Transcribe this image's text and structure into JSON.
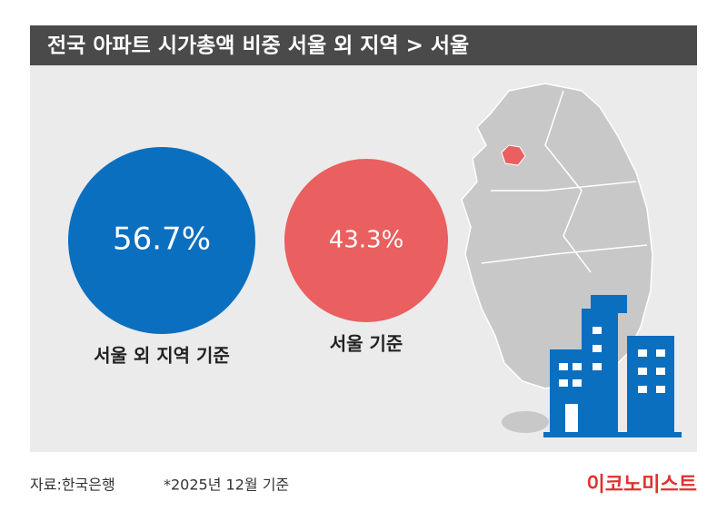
{
  "chart_data": {
    "type": "bubble",
    "title": "전국 아파트 시가총액 비중 서울 외 지역 > 서울",
    "categories": [
      "서울 외 지역 기준",
      "서울 기준"
    ],
    "values": [
      56.7,
      43.3
    ],
    "value_labels": [
      "56.7%",
      "43.3%"
    ],
    "colors": [
      "#0b6fc0",
      "#ea5f5f"
    ]
  },
  "footer": {
    "source": "자료:한국은행",
    "note": "*2025년 12월 기준",
    "brand": "이코노미스트"
  }
}
